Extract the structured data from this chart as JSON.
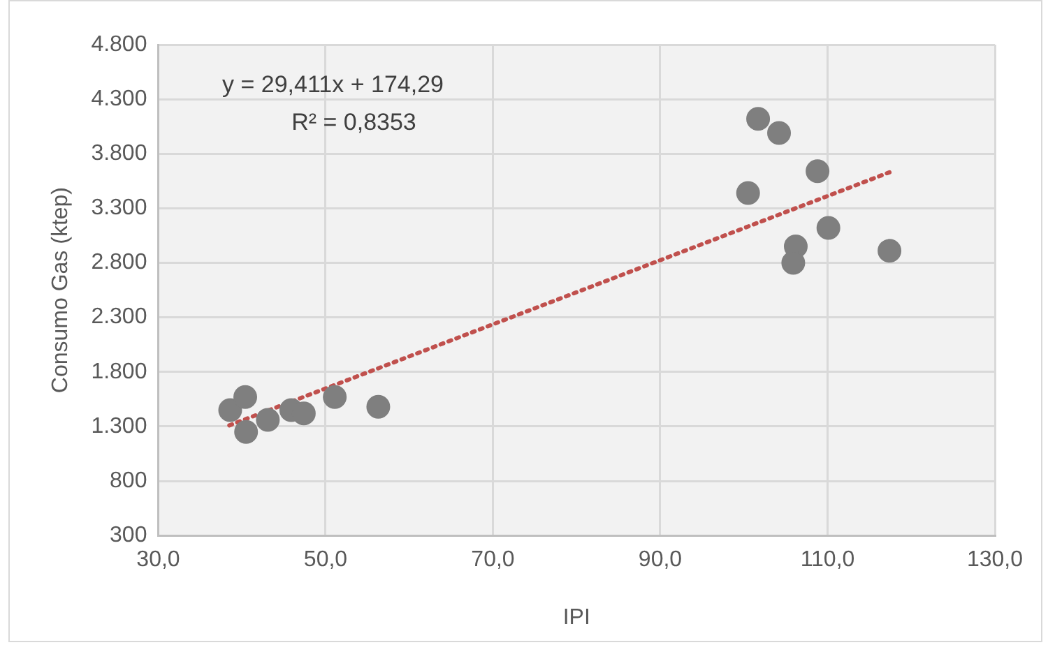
{
  "chart_data": {
    "type": "scatter",
    "xlabel": "IPI",
    "ylabel": "Consumo Gas (ktep)",
    "annotations": [
      "y = 29,411x + 174,29",
      "R² = 0,8353"
    ],
    "xlim": [
      30,
      130
    ],
    "xticks": [
      {
        "value": 30,
        "label": "30,0"
      },
      {
        "value": 50,
        "label": "50,0"
      },
      {
        "value": 70,
        "label": "70,0"
      },
      {
        "value": 90,
        "label": "90,0"
      },
      {
        "value": 110,
        "label": "110,0"
      },
      {
        "value": 130,
        "label": "130,0"
      }
    ],
    "ylim": [
      300,
      4800
    ],
    "yticks": [
      300,
      800,
      {
        "value": 1300,
        "label": "1.300"
      },
      {
        "value": 1800,
        "label": "1.800"
      },
      {
        "value": 2300,
        "label": "2.300"
      },
      {
        "value": 2800,
        "label": "2.800"
      },
      {
        "value": 3300,
        "label": "3.300"
      },
      {
        "value": 3800,
        "label": "3.800"
      },
      {
        "value": 4300,
        "label": "4.300"
      },
      {
        "value": 4800,
        "label": "4.800"
      }
    ],
    "grid": true,
    "legend": false,
    "marker": "circle",
    "series": [
      {
        "color": "#7f7f7f",
        "x": [
          38.6,
          40.4,
          40.5,
          43.1,
          45.9,
          47.4,
          51.1,
          56.3,
          101.7,
          104.2,
          108.8,
          100.5,
          110.1,
          106.2,
          105.9,
          117.4
        ],
        "values": [
          1450,
          1570,
          1250,
          1360,
          1450,
          1420,
          1570,
          1480,
          4120,
          3990,
          3640,
          3440,
          3120,
          2950,
          2800,
          2910
        ]
      },
      {
        "type": "line",
        "color": "#c0504d",
        "line_style": "dotted",
        "marker": "none",
        "x": [
          38.5,
          117.4
        ],
        "values": [
          1310,
          3630
        ]
      }
    ]
  }
}
